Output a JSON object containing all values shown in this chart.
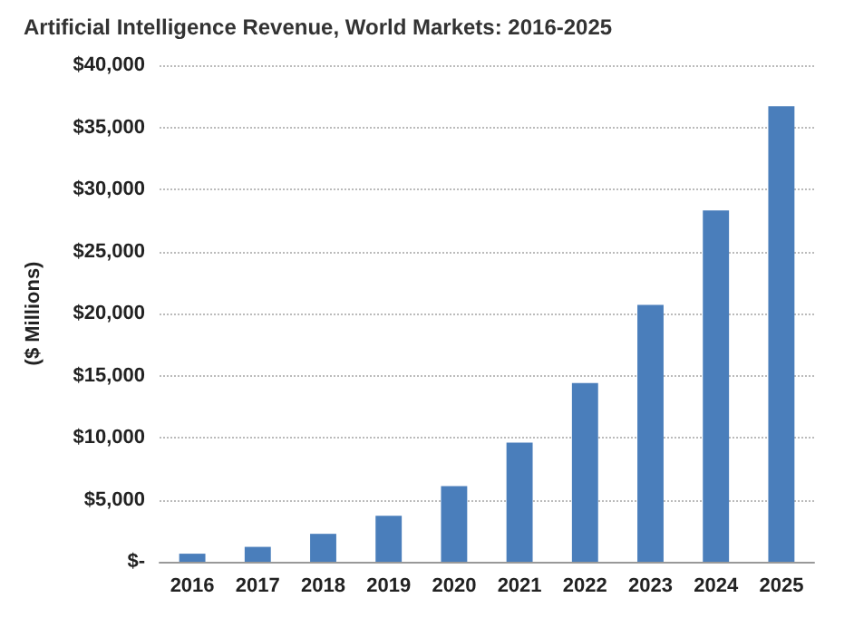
{
  "chart_data": {
    "type": "bar",
    "title": "Artificial Intelligence Revenue, World Markets: 2016-2025",
    "ylabel": "($ Millions)",
    "categories": [
      "2016",
      "2017",
      "2018",
      "2019",
      "2020",
      "2021",
      "2022",
      "2023",
      "2024",
      "2025"
    ],
    "values": [
      650,
      1200,
      2250,
      3700,
      6100,
      9600,
      14400,
      20700,
      28300,
      36700
    ],
    "color": "#4a7ebb",
    "ylim": [
      0,
      40000
    ],
    "yticks": [
      {
        "value": 0,
        "label": "$-"
      },
      {
        "value": 5000,
        "label": "$5,000"
      },
      {
        "value": 10000,
        "label": "$10,000"
      },
      {
        "value": 15000,
        "label": "$15,000"
      },
      {
        "value": 20000,
        "label": "$20,000"
      },
      {
        "value": 25000,
        "label": "$25,000"
      },
      {
        "value": 30000,
        "label": "$30,000"
      },
      {
        "value": 35000,
        "label": "$35,000"
      },
      {
        "value": 40000,
        "label": "$40,000"
      }
    ],
    "grid": "y"
  }
}
